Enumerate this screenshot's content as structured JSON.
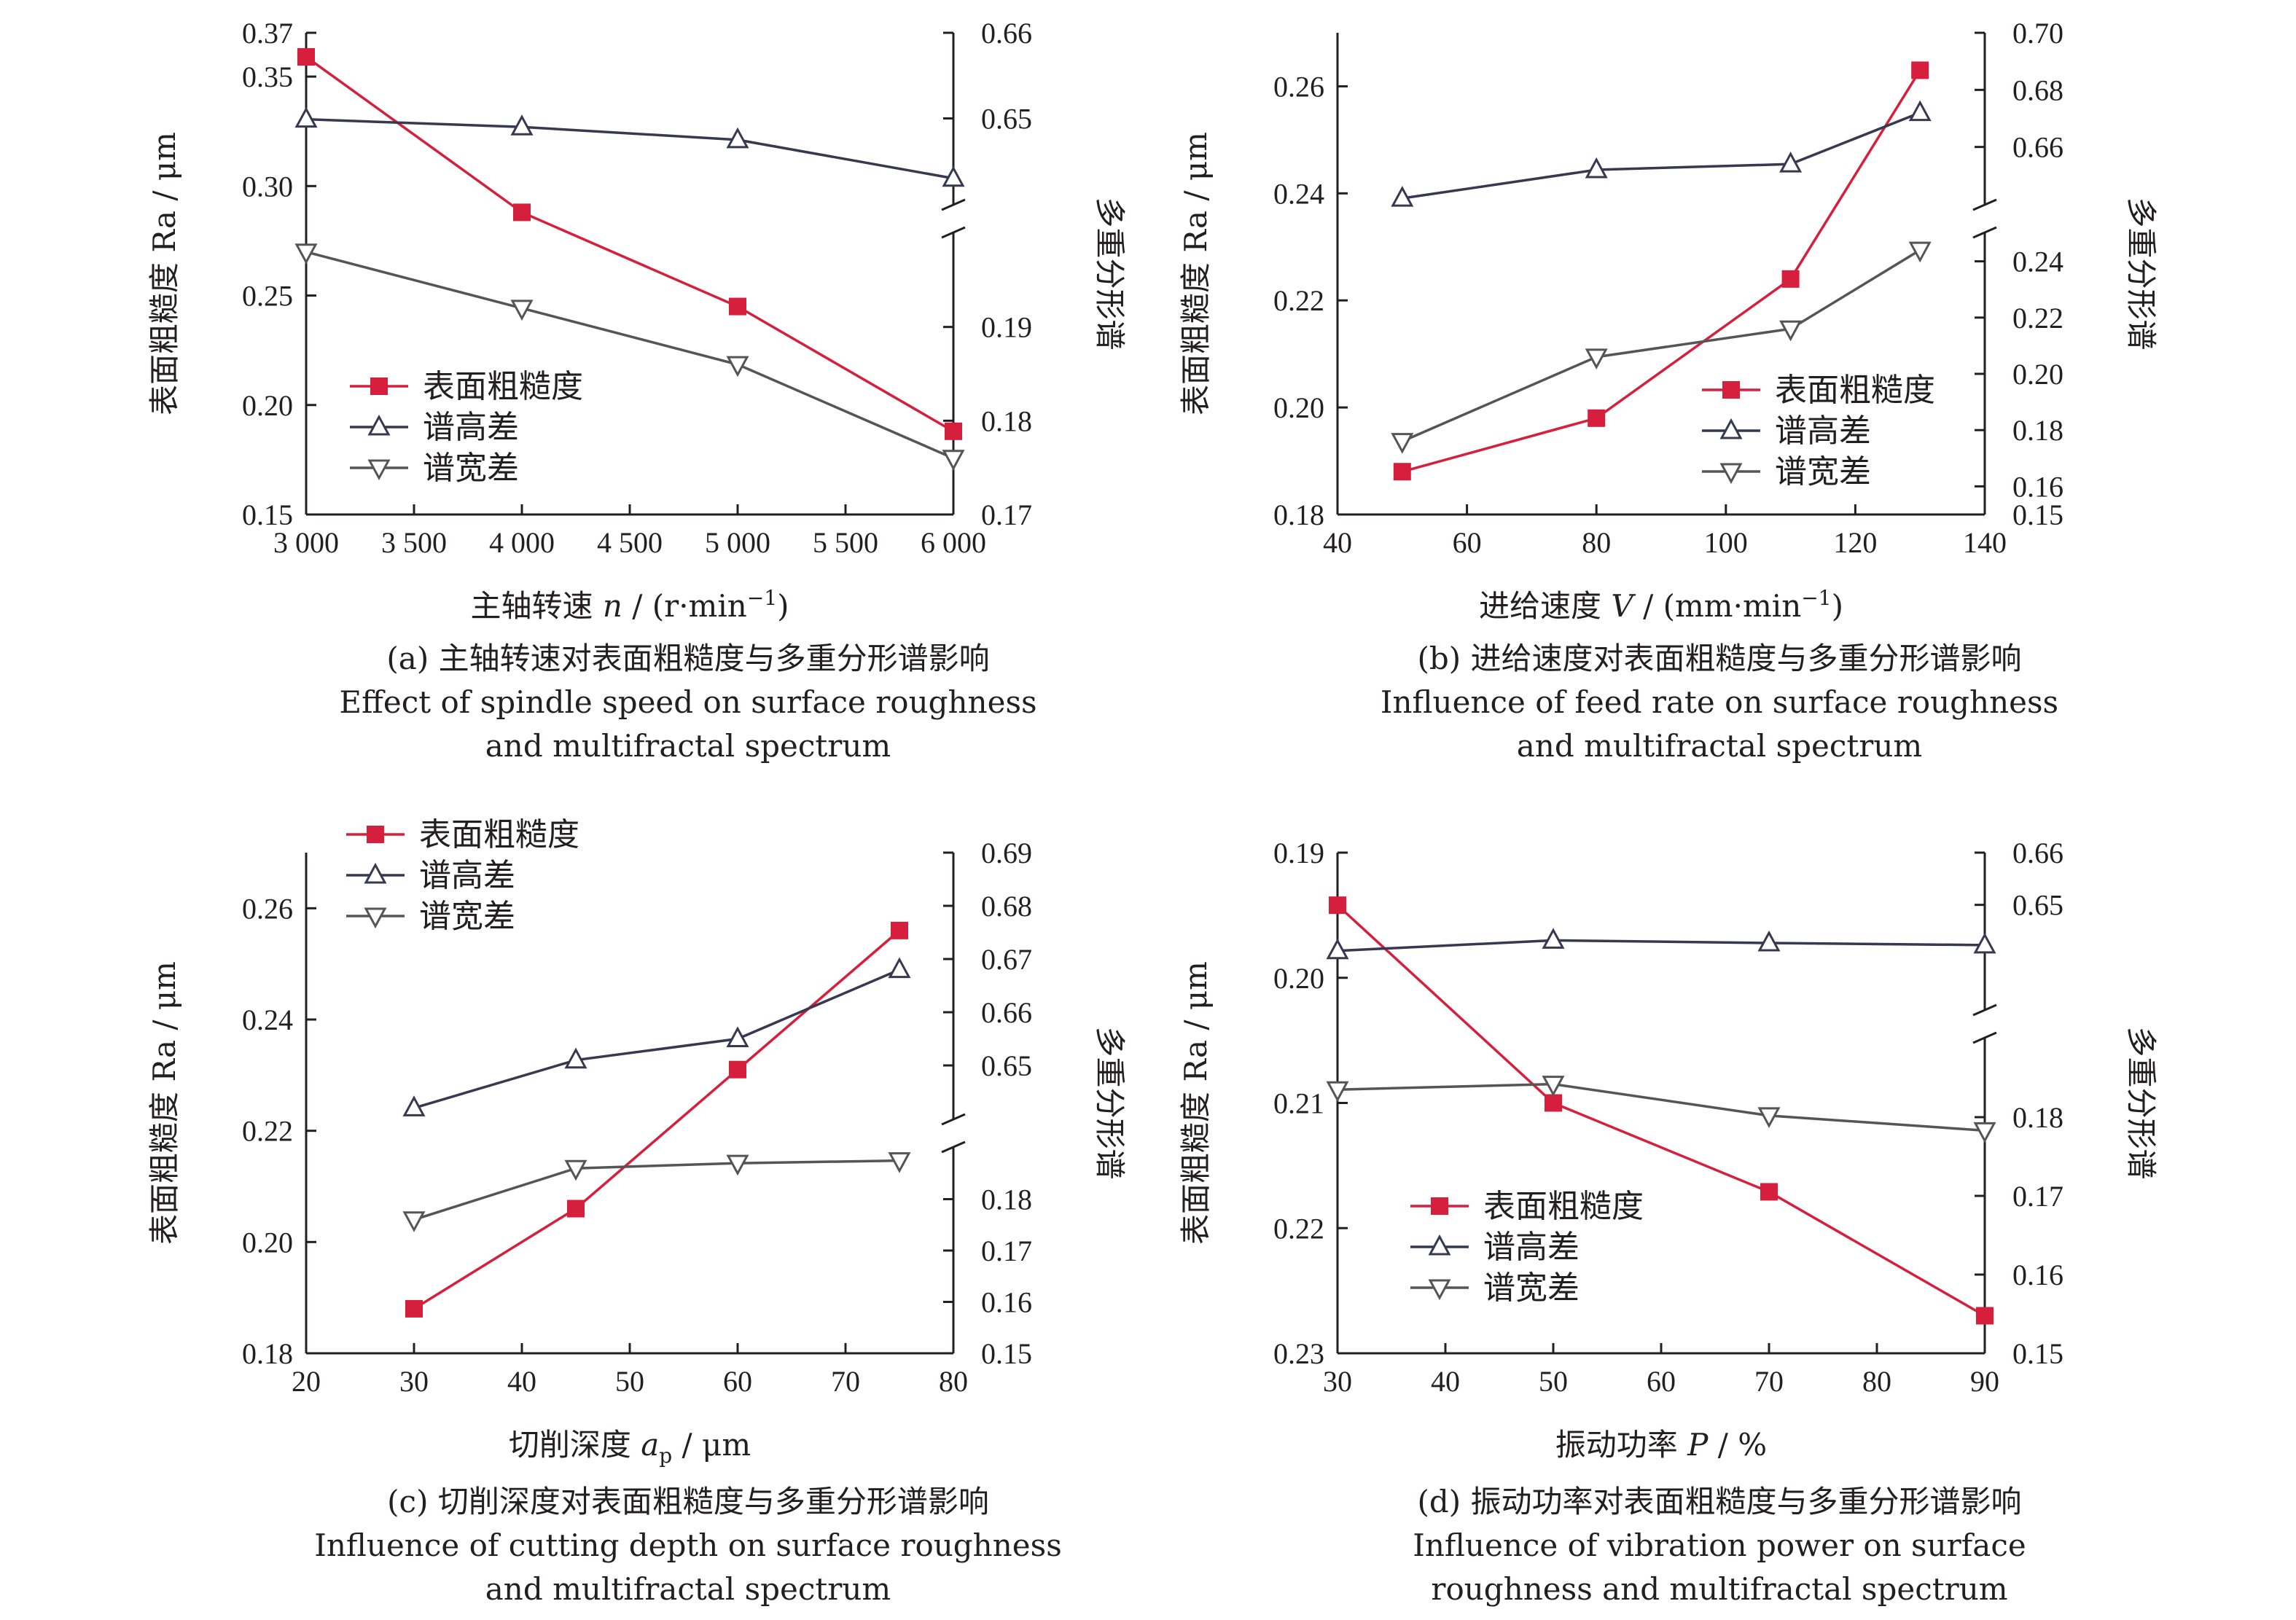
{
  "chart_data": [
    {
      "type": "line",
      "panel": "(a)",
      "xlabel": {
        "prefix": "主轴转速 ",
        "var": "n",
        "sub": "",
        "suffix": " / (r·min",
        "sup": "−1",
        "tail": ")"
      },
      "ylabel": "表面粗糙度 Ra / μm",
      "y2label": "多重分形谱",
      "x_ticks": [
        3000,
        3500,
        4000,
        4500,
        5000,
        5500,
        6000
      ],
      "x_tick_labels": [
        "3 000",
        "3 500",
        "4 000",
        "4 500",
        "5 000",
        "5 500",
        "6 000"
      ],
      "xlim": [
        3000,
        6000
      ],
      "ylim": [
        0.15,
        0.37
      ],
      "y_ticks": [
        0.15,
        0.2,
        0.25,
        0.3,
        0.35,
        0.37
      ],
      "y_tick_labels": [
        "0.15",
        "0.20",
        "0.25",
        "0.30",
        "0.35",
        "0.37"
      ],
      "y_reversed": false,
      "y2_lower": {
        "range": [
          0.17,
          0.2
        ],
        "ticks": [
          0.17,
          0.18,
          0.19
        ],
        "labels": [
          "0.17",
          "0.18",
          "0.19"
        ]
      },
      "y2_upper": {
        "range": [
          0.64,
          0.66
        ],
        "ticks": [
          0.65,
          0.66
        ],
        "labels": [
          "0.65",
          "0.66"
        ]
      },
      "legend_position": "middle-left",
      "series": [
        {
          "name": "表面粗糙度",
          "axis": "left",
          "color": "#d61f3c",
          "marker": "square",
          "x": [
            3000,
            4000,
            5000,
            6000
          ],
          "y": [
            0.359,
            0.288,
            0.245,
            0.188
          ]
        },
        {
          "name": "谱高差",
          "axis": "right-upper",
          "color": "#36394f",
          "marker": "triangle-up",
          "x": [
            3000,
            4000,
            5000,
            6000
          ],
          "y": [
            0.6499,
            0.649,
            0.6475,
            0.643
          ]
        },
        {
          "name": "谱宽差",
          "axis": "right-lower",
          "color": "#555555",
          "marker": "triangle-down",
          "x": [
            3000,
            4000,
            5000,
            6000
          ],
          "y": [
            0.198,
            0.192,
            0.186,
            0.176
          ]
        }
      ],
      "caption": [
        "(a) 主轴转速对表面粗糙度与多重分形谱影响",
        "Effect of spindle speed on surface roughness",
        "and multifractal spectrum"
      ]
    },
    {
      "type": "line",
      "panel": "(b)",
      "xlabel": {
        "prefix": "进给速度 ",
        "var": "V",
        "sub": "",
        "suffix": " / (mm·min",
        "sup": "−1",
        "tail": ")"
      },
      "ylabel": "表面粗糙度 Ra / μm",
      "y2label": "多重分形谱",
      "x_ticks": [
        40,
        60,
        80,
        100,
        120,
        140
      ],
      "x_tick_labels": [
        "40",
        "60",
        "80",
        "100",
        "120",
        "140"
      ],
      "xlim": [
        40,
        140
      ],
      "ylim": [
        0.18,
        0.27
      ],
      "y_ticks": [
        0.18,
        0.2,
        0.22,
        0.24,
        0.26
      ],
      "y_tick_labels": [
        "0.18",
        "0.20",
        "0.22",
        "0.24",
        "0.26"
      ],
      "y_reversed": false,
      "y2_lower": {
        "range": [
          0.15,
          0.25
        ],
        "ticks": [
          0.15,
          0.16,
          0.18,
          0.2,
          0.22,
          0.24
        ],
        "labels": [
          "0.15",
          "0.16",
          "0.18",
          "0.20",
          "0.22",
          "0.24"
        ]
      },
      "y2_upper": {
        "range": [
          0.64,
          0.7
        ],
        "ticks": [
          0.66,
          0.68,
          0.7
        ],
        "labels": [
          "0.66",
          "0.68",
          "0.70"
        ]
      },
      "legend_position": "lower-right",
      "series": [
        {
          "name": "表面粗糙度",
          "axis": "left",
          "color": "#d61f3c",
          "marker": "square",
          "x": [
            50,
            80,
            110,
            130
          ],
          "y": [
            0.188,
            0.198,
            0.224,
            0.263
          ]
        },
        {
          "name": "谱高差",
          "axis": "right-upper",
          "color": "#36394f",
          "marker": "triangle-up",
          "x": [
            50,
            80,
            110,
            130
          ],
          "y": [
            0.642,
            0.652,
            0.654,
            0.672
          ]
        },
        {
          "name": "谱宽差",
          "axis": "right-lower",
          "color": "#555555",
          "marker": "triangle-down",
          "x": [
            50,
            80,
            110,
            130
          ],
          "y": [
            0.176,
            0.206,
            0.216,
            0.244
          ]
        }
      ],
      "caption": [
        "(b) 进给速度对表面粗糙度与多重分形谱影响",
        "Influence of feed rate on surface roughness",
        "and multifractal spectrum"
      ]
    },
    {
      "type": "line",
      "panel": "(c)",
      "xlabel": {
        "prefix": "切削深度 ",
        "var": "a",
        "sub": "p",
        "suffix": " / μm",
        "sup": "",
        "tail": ""
      },
      "ylabel": "表面粗糙度 Ra / μm",
      "y2label": "多重分形谱",
      "x_ticks": [
        20,
        30,
        40,
        50,
        60,
        70,
        80
      ],
      "x_tick_labels": [
        "20",
        "30",
        "40",
        "50",
        "60",
        "70",
        "80"
      ],
      "xlim": [
        20,
        80
      ],
      "ylim": [
        0.18,
        0.27
      ],
      "y_ticks": [
        0.18,
        0.2,
        0.22,
        0.24,
        0.26
      ],
      "y_tick_labels": [
        "0.18",
        "0.20",
        "0.22",
        "0.24",
        "0.26"
      ],
      "y_reversed": false,
      "y2_lower": {
        "range": [
          0.15,
          0.19
        ],
        "ticks": [
          0.15,
          0.16,
          0.17,
          0.18
        ],
        "labels": [
          "0.15",
          "0.16",
          "0.17",
          "0.18"
        ]
      },
      "y2_upper": {
        "range": [
          0.64,
          0.69
        ],
        "ticks": [
          0.65,
          0.66,
          0.67,
          0.68,
          0.69
        ],
        "labels": [
          "0.65",
          "0.66",
          "0.67",
          "0.68",
          "0.69"
        ]
      },
      "legend_position": "top-left",
      "series": [
        {
          "name": "表面粗糙度",
          "axis": "left",
          "color": "#d61f3c",
          "marker": "square",
          "x": [
            30,
            45,
            60,
            75
          ],
          "y": [
            0.188,
            0.206,
            0.231,
            0.256
          ]
        },
        {
          "name": "谱高差",
          "axis": "right-upper",
          "color": "#36394f",
          "marker": "triangle-up",
          "x": [
            30,
            45,
            60,
            75
          ],
          "y": [
            0.642,
            0.651,
            0.655,
            0.668
          ]
        },
        {
          "name": "谱宽差",
          "axis": "right-lower",
          "color": "#555555",
          "marker": "triangle-down",
          "x": [
            30,
            45,
            60,
            75
          ],
          "y": [
            0.176,
            0.186,
            0.187,
            0.1875
          ]
        }
      ],
      "caption": [
        "(c) 切削深度对表面粗糙度与多重分形谱影响",
        "Influence of cutting depth on surface roughness",
        "and multifractal spectrum"
      ]
    },
    {
      "type": "line",
      "panel": "(d)",
      "xlabel": {
        "prefix": "振动功率 ",
        "var": "P",
        "sub": "",
        "suffix": " / %",
        "sup": "",
        "tail": ""
      },
      "ylabel": "表面粗糙度 Ra / μm",
      "y2label": "多重分形谱",
      "x_ticks": [
        30,
        40,
        50,
        60,
        70,
        80,
        90
      ],
      "x_tick_labels": [
        "30",
        "40",
        "50",
        "60",
        "70",
        "80",
        "90"
      ],
      "xlim": [
        30,
        90
      ],
      "ylim": [
        0.19,
        0.23
      ],
      "y_ticks": [
        0.19,
        0.2,
        0.21,
        0.22,
        0.23
      ],
      "y_tick_labels": [
        "0.19",
        "0.20",
        "0.21",
        "0.22",
        "0.23"
      ],
      "y_reversed": true,
      "y2_lower": {
        "range": [
          0.15,
          0.19
        ],
        "ticks": [
          0.15,
          0.16,
          0.17,
          0.18
        ],
        "labels": [
          "0.15",
          "0.16",
          "0.17",
          "0.18"
        ]
      },
      "y2_upper": {
        "range": [
          0.63,
          0.66
        ],
        "ticks": [
          0.65,
          0.66
        ],
        "labels": [
          "0.65",
          "0.66"
        ]
      },
      "legend_position": "lower-left",
      "series": [
        {
          "name": "表面粗糙度",
          "axis": "left",
          "color": "#d61f3c",
          "marker": "square",
          "x": [
            30,
            50,
            70,
            90
          ],
          "y": [
            0.1942,
            0.21,
            0.2171,
            0.227
          ]
        },
        {
          "name": "谱高差",
          "axis": "right-upper",
          "color": "#36394f",
          "marker": "triangle-up",
          "x": [
            30,
            50,
            70,
            90
          ],
          "y": [
            0.6412,
            0.6432,
            0.6427,
            0.6423
          ]
        },
        {
          "name": "谱宽差",
          "axis": "right-lower",
          "color": "#555555",
          "marker": "triangle-down",
          "x": [
            30,
            50,
            70,
            90
          ],
          "y": [
            0.1835,
            0.1842,
            0.1802,
            0.1783
          ]
        }
      ],
      "caption": [
        "(d) 振动功率对表面粗糙度与多重分形谱影响",
        "Influence of vibration power on surface",
        "roughness and multifractal spectrum"
      ]
    }
  ]
}
